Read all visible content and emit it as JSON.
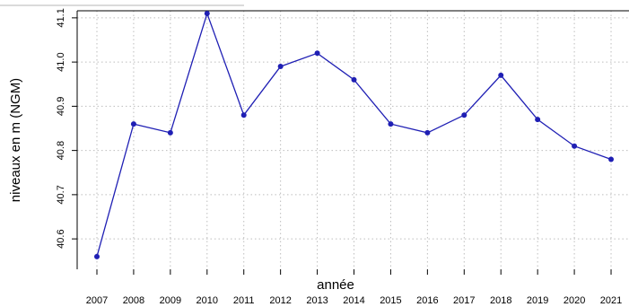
{
  "chart_data": {
    "type": "line",
    "title": "",
    "xlabel": "année",
    "ylabel": "niveaux en m (NGM)",
    "x": [
      2007,
      2008,
      2009,
      2010,
      2011,
      2012,
      2013,
      2014,
      2015,
      2016,
      2017,
      2018,
      2019,
      2020,
      2021
    ],
    "x_tick_labels": [
      "2007",
      "2008",
      "2009",
      "2010",
      "2011",
      "2012",
      "2013",
      "2014",
      "2015",
      "2016",
      "2017",
      "2018",
      "2019",
      "2020",
      "2021"
    ],
    "y_ticks": [
      40.6,
      40.7,
      40.8,
      40.9,
      41.0,
      41.1
    ],
    "y_tick_labels": [
      "40.6",
      "40.7",
      "40.8",
      "40.9",
      "41.0",
      "41.1"
    ],
    "ylim": [
      40.53,
      41.13
    ],
    "grid": true,
    "series": [
      {
        "values": [
          40.56,
          40.86,
          40.84,
          41.11,
          40.88,
          40.99,
          41.02,
          40.96,
          40.86,
          40.84,
          40.88,
          40.97,
          40.87,
          40.81,
          40.78
        ]
      }
    ],
    "colors": {
      "series": "#1f1fb4",
      "grid": "#bdbdbd"
    }
  }
}
